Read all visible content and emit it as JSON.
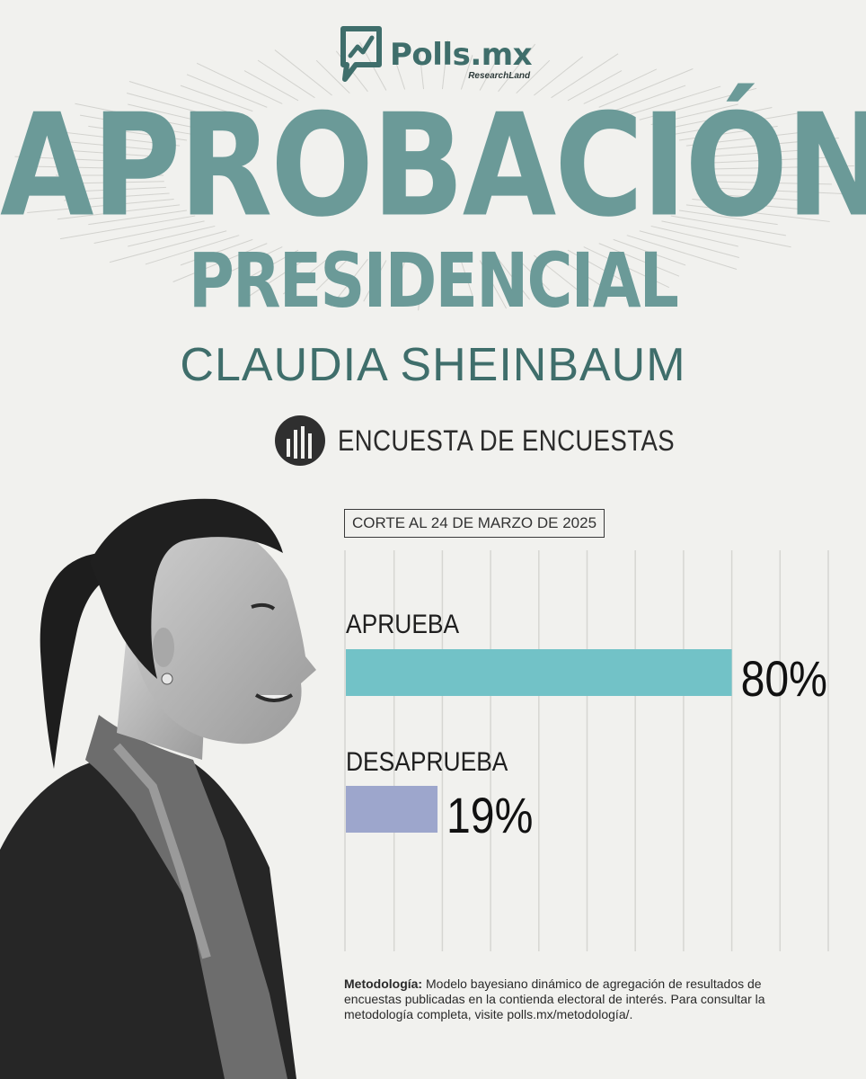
{
  "logo": {
    "brand": "Polls.mx",
    "sub_brand": "ResearchLand"
  },
  "title": {
    "line1": "APROBACIÓN",
    "line2": "PRESIDENCIAL"
  },
  "subject": "CLAUDIA SHEINBAUM",
  "section": {
    "label": "ENCUESTA DE ENCUESTAS",
    "icon": "bar-chart-icon"
  },
  "cut_date": "CORTE AL 24 DE MARZO DE 2025",
  "chart_data": {
    "type": "bar",
    "orientation": "horizontal",
    "categories": [
      "APRUEBA",
      "DESAPRUEBA"
    ],
    "values": [
      80,
      19
    ],
    "value_labels": [
      "80%",
      "19%"
    ],
    "colors": [
      "#72c2c7",
      "#9da6cc"
    ],
    "xlim": [
      0,
      100
    ],
    "grid": true
  },
  "methodology": {
    "label": "Metodología:",
    "text": "Modelo bayesiano dinámico de agregación de resultados de encuestas publicadas en la contienda electoral de interés. Para consultar la metodología completa, visite polls.mx/metodología/."
  },
  "colors": {
    "accent": "#6b9a98",
    "brand": "#3f6e6b",
    "approve": "#72c2c7",
    "disapprove": "#9da6cc"
  }
}
